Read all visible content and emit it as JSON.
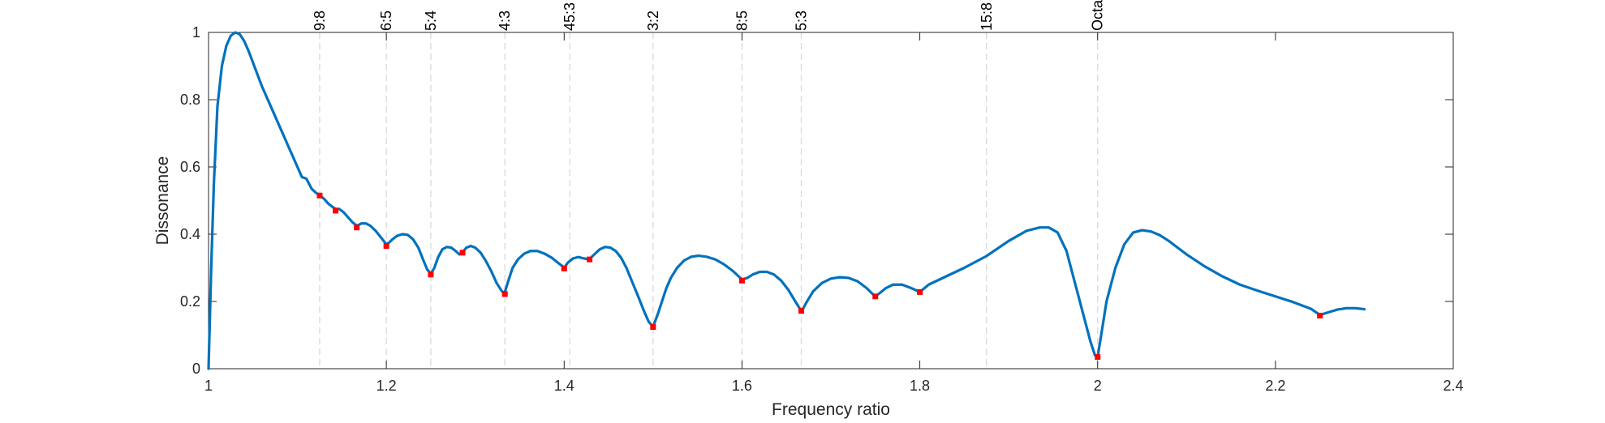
{
  "chart_data": {
    "type": "line",
    "xlabel": "Frequency ratio",
    "ylabel": "Dissonance",
    "xlim": [
      1,
      2.4
    ],
    "ylim": [
      0,
      1
    ],
    "xticks": [
      1,
      1.2,
      1.4,
      1.6,
      1.8,
      2,
      2.2,
      2.4
    ],
    "xtick_labels": [
      "1",
      "1.2",
      "1.4",
      "1.6",
      "1.8",
      "2",
      "2.2",
      "2.4"
    ],
    "yticks": [
      0,
      0.2,
      0.4,
      0.6,
      0.8,
      1
    ],
    "ytick_labels": [
      "0",
      "0.2",
      "0.4",
      "0.6",
      "0.8",
      "1"
    ],
    "grid": false,
    "colors": {
      "curve": "#0072BD",
      "markers": "#FF0000",
      "ref_lines": "#D9D9D9",
      "axes": "#262626"
    },
    "reference_lines": [
      {
        "x": 1.125,
        "label": "9:8"
      },
      {
        "x": 1.2,
        "label": "6:5"
      },
      {
        "x": 1.25,
        "label": "5:4"
      },
      {
        "x": 1.3333,
        "label": "4:3"
      },
      {
        "x": 1.40625,
        "label": "45:3"
      },
      {
        "x": 1.5,
        "label": "3:2"
      },
      {
        "x": 1.6,
        "label": "8:5"
      },
      {
        "x": 1.6667,
        "label": "5:3"
      },
      {
        "x": 1.875,
        "label": "15:8"
      },
      {
        "x": 2.0,
        "label": "Octa"
      }
    ],
    "series": [
      {
        "x": [
          1.0,
          1.003,
          1.006,
          1.01,
          1.015,
          1.02,
          1.025,
          1.03,
          1.035,
          1.04,
          1.045,
          1.05,
          1.06,
          1.07,
          1.08,
          1.09,
          1.1,
          1.105,
          1.11,
          1.113,
          1.116,
          1.12,
          1.125,
          1.13,
          1.135,
          1.14,
          1.143,
          1.147,
          1.152,
          1.157,
          1.162,
          1.167,
          1.172,
          1.177,
          1.182,
          1.188,
          1.194,
          1.2,
          1.203,
          1.207,
          1.212,
          1.218,
          1.224,
          1.23,
          1.236,
          1.242,
          1.246,
          1.25,
          1.254,
          1.258,
          1.263,
          1.268,
          1.273,
          1.278,
          1.282,
          1.286,
          1.29,
          1.295,
          1.3,
          1.306,
          1.312,
          1.318,
          1.324,
          1.33,
          1.333,
          1.337,
          1.342,
          1.348,
          1.355,
          1.362,
          1.37,
          1.378,
          1.386,
          1.393,
          1.398,
          1.4,
          1.404,
          1.41,
          1.416,
          1.422,
          1.428,
          1.434,
          1.44,
          1.446,
          1.452,
          1.458,
          1.464,
          1.47,
          1.477,
          1.484,
          1.49,
          1.495,
          1.5,
          1.505,
          1.51,
          1.515,
          1.52,
          1.527,
          1.535,
          1.543,
          1.551,
          1.56,
          1.57,
          1.58,
          1.59,
          1.6,
          1.606,
          1.612,
          1.62,
          1.628,
          1.636,
          1.644,
          1.652,
          1.66,
          1.667,
          1.672,
          1.68,
          1.69,
          1.7,
          1.71,
          1.72,
          1.73,
          1.74,
          1.747,
          1.75,
          1.755,
          1.762,
          1.77,
          1.78,
          1.79,
          1.797,
          1.8,
          1.81,
          1.83,
          1.85,
          1.875,
          1.9,
          1.92,
          1.935,
          1.945,
          1.955,
          1.965,
          1.975,
          1.985,
          1.992,
          1.997,
          2.0,
          2.004,
          2.01,
          2.02,
          2.03,
          2.04,
          2.05,
          2.06,
          2.07,
          2.08,
          2.09,
          2.1,
          2.12,
          2.14,
          2.16,
          2.18,
          2.2,
          2.22,
          2.24,
          2.25,
          2.26,
          2.27,
          2.28,
          2.29,
          2.3
        ],
        "y": [
          0.0,
          0.3,
          0.55,
          0.78,
          0.9,
          0.96,
          0.99,
          1.0,
          0.995,
          0.975,
          0.945,
          0.91,
          0.84,
          0.78,
          0.72,
          0.66,
          0.6,
          0.57,
          0.565,
          0.55,
          0.535,
          0.525,
          0.515,
          0.505,
          0.49,
          0.48,
          0.475,
          0.475,
          0.465,
          0.45,
          0.435,
          0.425,
          0.432,
          0.432,
          0.425,
          0.41,
          0.39,
          0.37,
          0.375,
          0.385,
          0.395,
          0.4,
          0.398,
          0.385,
          0.36,
          0.32,
          0.295,
          0.282,
          0.3,
          0.33,
          0.355,
          0.362,
          0.36,
          0.35,
          0.34,
          0.347,
          0.36,
          0.365,
          0.36,
          0.345,
          0.32,
          0.29,
          0.255,
          0.23,
          0.225,
          0.26,
          0.3,
          0.325,
          0.342,
          0.35,
          0.35,
          0.342,
          0.33,
          0.315,
          0.305,
          0.3,
          0.315,
          0.328,
          0.332,
          0.328,
          0.325,
          0.34,
          0.355,
          0.362,
          0.36,
          0.35,
          0.33,
          0.3,
          0.255,
          0.21,
          0.17,
          0.14,
          0.125,
          0.16,
          0.2,
          0.24,
          0.27,
          0.3,
          0.322,
          0.333,
          0.336,
          0.333,
          0.325,
          0.31,
          0.29,
          0.265,
          0.27,
          0.28,
          0.288,
          0.288,
          0.28,
          0.262,
          0.235,
          0.2,
          0.17,
          0.195,
          0.23,
          0.255,
          0.268,
          0.272,
          0.27,
          0.26,
          0.24,
          0.222,
          0.215,
          0.225,
          0.24,
          0.25,
          0.25,
          0.24,
          0.232,
          0.228,
          0.25,
          0.275,
          0.3,
          0.335,
          0.38,
          0.41,
          0.42,
          0.42,
          0.405,
          0.35,
          0.25,
          0.15,
          0.08,
          0.04,
          0.035,
          0.1,
          0.2,
          0.3,
          0.37,
          0.405,
          0.412,
          0.408,
          0.397,
          0.38,
          0.36,
          0.34,
          0.305,
          0.275,
          0.25,
          0.232,
          0.215,
          0.198,
          0.178,
          0.16,
          0.168,
          0.176,
          0.18,
          0.18,
          0.177
        ]
      }
    ],
    "markers": {
      "x": [
        1.125,
        1.1429,
        1.1667,
        1.2,
        1.25,
        1.2857,
        1.3333,
        1.4,
        1.4286,
        1.5,
        1.6,
        1.6667,
        1.75,
        1.8,
        2.0,
        2.25
      ],
      "y": [
        0.515,
        0.47,
        0.42,
        0.365,
        0.28,
        0.345,
        0.222,
        0.298,
        0.325,
        0.124,
        0.262,
        0.172,
        0.215,
        0.228,
        0.035,
        0.158
      ]
    }
  }
}
